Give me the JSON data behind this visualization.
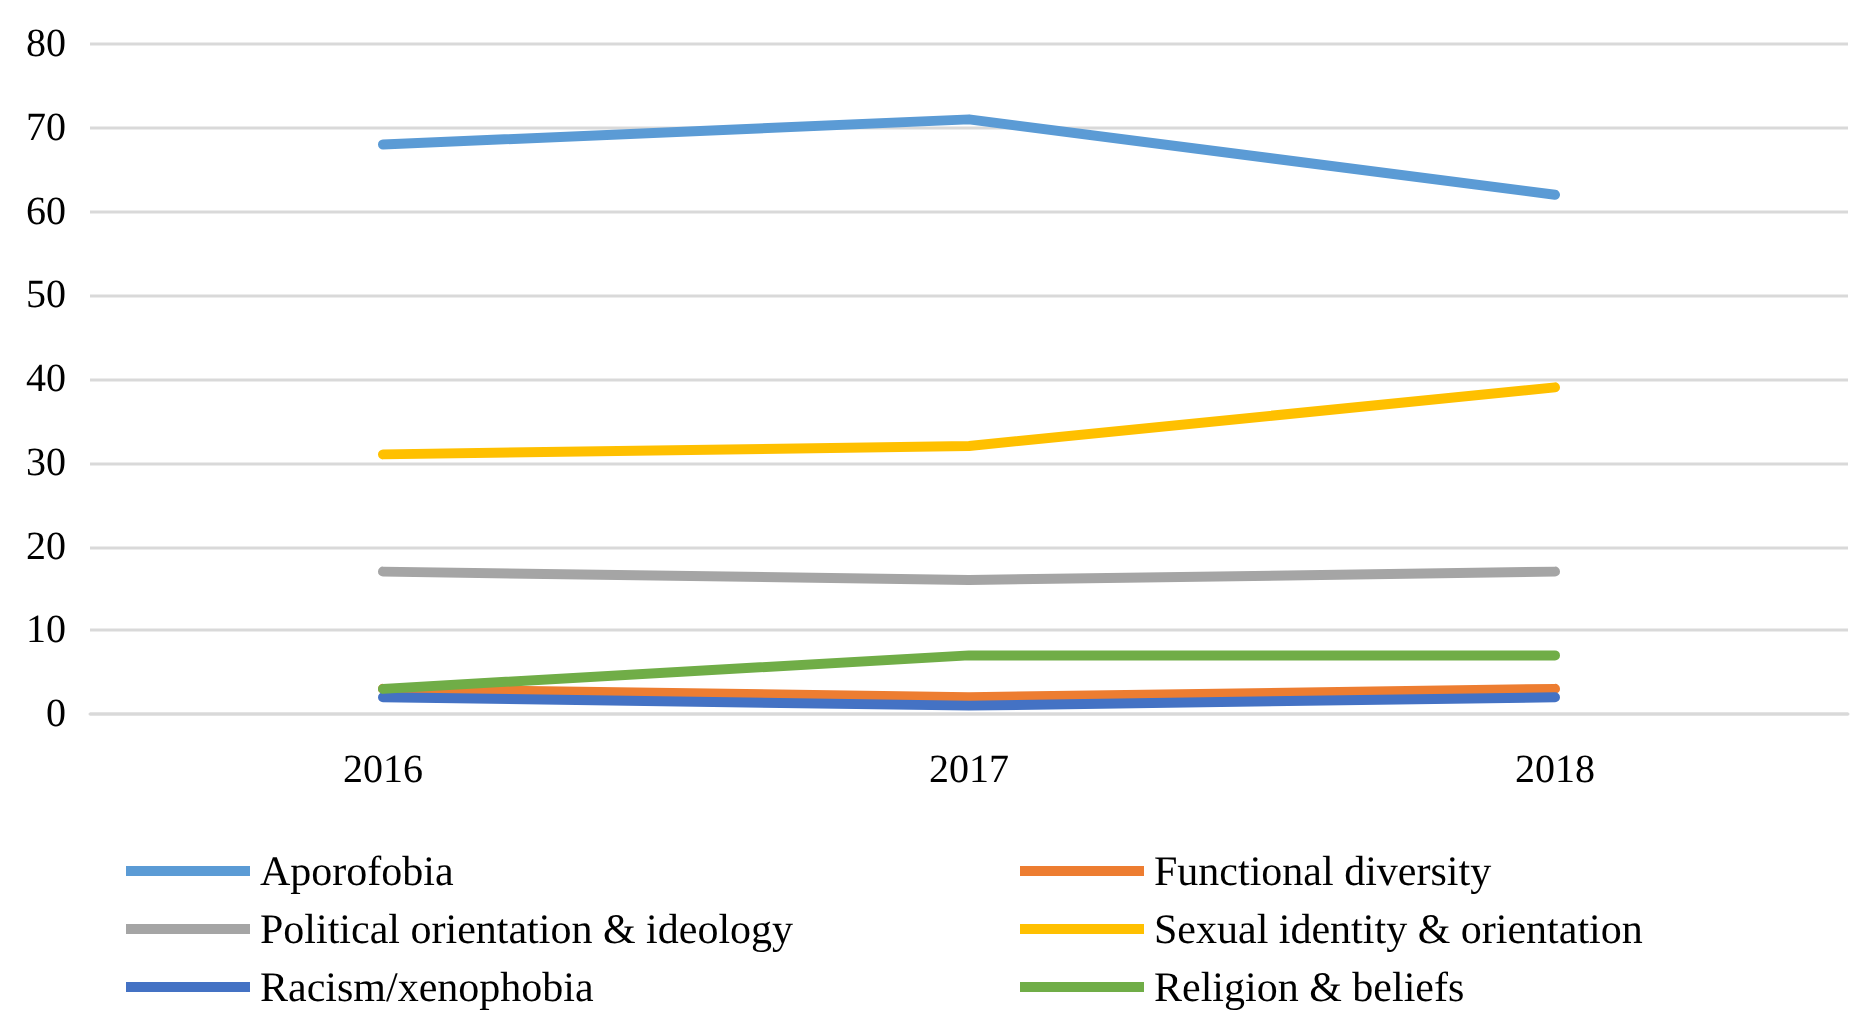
{
  "chart_data": {
    "type": "line",
    "categories": [
      "2016",
      "2017",
      "2018"
    ],
    "series": [
      {
        "name": "Aporofobia",
        "color": "#5b9bd5",
        "values": [
          68,
          71,
          62
        ]
      },
      {
        "name": "Functional diversity",
        "color": "#ed7d31",
        "values": [
          3,
          2,
          3
        ]
      },
      {
        "name": "Political orientation & ideology",
        "color": "#a5a5a5",
        "values": [
          17,
          16,
          17
        ]
      },
      {
        "name": "Sexual identity & orientation",
        "color": "#ffc000",
        "values": [
          31,
          32,
          39
        ]
      },
      {
        "name": "Racism/xenophobia",
        "color": "#4472c4",
        "values": [
          2,
          1,
          2
        ]
      },
      {
        "name": "Religion & beliefs",
        "color": "#70ad47",
        "values": [
          3,
          7,
          7
        ]
      }
    ],
    "ylim": [
      0,
      80
    ],
    "yticks": [
      0,
      10,
      20,
      30,
      40,
      50,
      60,
      70,
      80
    ],
    "grid": "y",
    "legend": "bottom",
    "marker": "none",
    "line_style": "solid"
  }
}
